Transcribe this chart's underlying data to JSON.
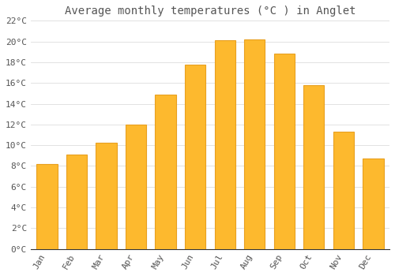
{
  "title": "Average monthly temperatures (°C ) in Anglet",
  "months": [
    "Jan",
    "Feb",
    "Mar",
    "Apr",
    "May",
    "Jun",
    "Jul",
    "Aug",
    "Sep",
    "Oct",
    "Nov",
    "Dec"
  ],
  "values": [
    8.2,
    9.1,
    10.2,
    12.0,
    14.9,
    17.8,
    20.1,
    20.2,
    18.8,
    15.8,
    11.3,
    8.7
  ],
  "bar_color": "#FDB92E",
  "bar_edge_color": "#E8A020",
  "background_color": "#FFFFFF",
  "grid_color": "#DDDDDD",
  "text_color": "#555555",
  "ylim": [
    0,
    22
  ],
  "ytick_step": 2,
  "title_fontsize": 10,
  "tick_fontsize": 8,
  "font_family": "monospace"
}
